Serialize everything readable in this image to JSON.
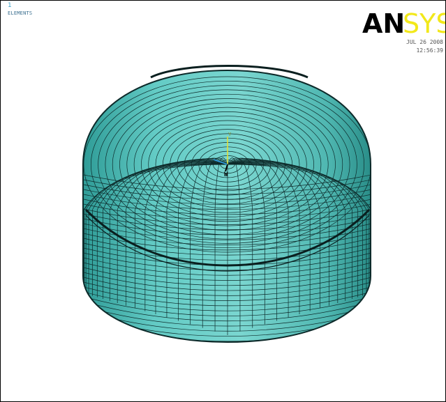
{
  "viewport": {
    "window_number": "1",
    "plot_label": "ELEMENTS",
    "date": "JUL 26 2008",
    "time": "12:56:39"
  },
  "logo": {
    "text_dark": "AN",
    "text_accent": "SYS",
    "dark_color": "#000000",
    "accent_color": "#f2e81a"
  },
  "model": {
    "fill_color": "#5bc6c0",
    "line_color": "#0d2a2a",
    "triad_icon": "axis-triad-icon"
  }
}
